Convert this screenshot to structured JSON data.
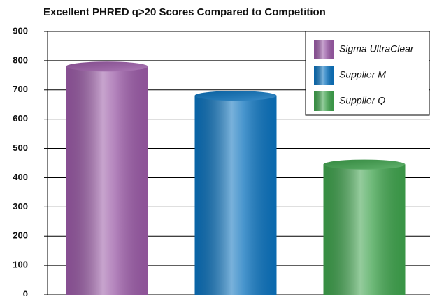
{
  "chart_data": {
    "type": "bar",
    "title": "Excellent PHRED q>20 Scores Compared to Competition",
    "series": [
      {
        "name": "Sigma UltraClear",
        "color": "#9a5aa6",
        "values": [
          780
        ]
      },
      {
        "name": "Supplier M",
        "color": "#0b72bd",
        "values": [
          680
        ]
      },
      {
        "name": "Supplier Q",
        "color": "#3ea24c",
        "values": [
          445
        ]
      }
    ],
    "ylim": [
      0,
      900
    ],
    "yticks": [
      0,
      100,
      200,
      300,
      400,
      500,
      600,
      700,
      800,
      900
    ],
    "grid": true,
    "legend": "top-right"
  }
}
